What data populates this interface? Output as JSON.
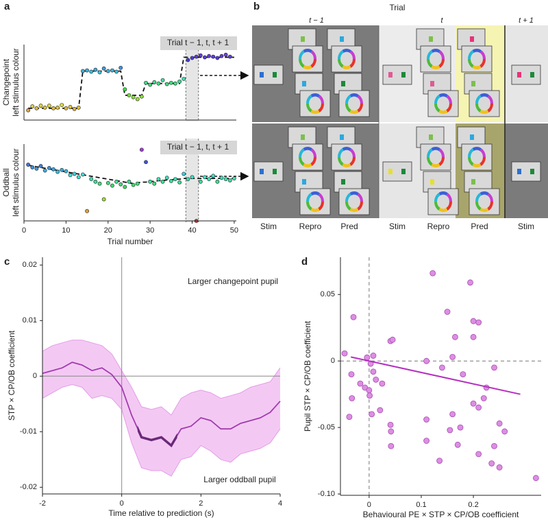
{
  "panel_labels": [
    "a",
    "b",
    "c",
    "d"
  ],
  "chart_data": [
    {
      "type": "scatter",
      "ylabel": [
        "Changepoint",
        "left stimulus colour"
      ],
      "annotation": "Trial t − 1, t, t + 1",
      "x": [
        1,
        2,
        3,
        4,
        5,
        6,
        7,
        8,
        9,
        10,
        11,
        12,
        13,
        14,
        15,
        16,
        17,
        18,
        19,
        20,
        21,
        22,
        23,
        24,
        25,
        26,
        27,
        28,
        29,
        30,
        31,
        32,
        33,
        34,
        35,
        36,
        37,
        38,
        39,
        40,
        41,
        42,
        43,
        44,
        45,
        46,
        47,
        48,
        49,
        50
      ],
      "values": [
        0.136,
        0.191,
        0.164,
        0.2,
        0.173,
        0.2,
        0.164,
        0.173,
        0.209,
        0.164,
        0.182,
        0.155,
        0.173,
        0.682,
        0.691,
        0.673,
        0.7,
        0.664,
        0.718,
        0.682,
        0.691,
        0.673,
        0.727,
        0.427,
        0.345,
        0.318,
        0.291,
        0.327,
        0.518,
        0.491,
        0.527,
        0.509,
        0.555,
        0.5,
        0.518,
        0.509,
        0.536,
        0.573,
        0.836,
        0.864,
        0.882,
        0.9,
        0.873,
        0.891,
        0.882,
        0.864,
        0.891,
        0.909,
        0.882,
        1.018
      ],
      "trend": [
        0.164,
        0.164,
        0.164,
        0.164,
        0.164,
        0.164,
        0.164,
        0.164,
        0.164,
        0.164,
        0.164,
        0.164,
        0.164,
        0.682,
        0.682,
        0.682,
        0.682,
        0.682,
        0.682,
        0.682,
        0.682,
        0.682,
        0.682,
        0.345,
        0.345,
        0.345,
        0.345,
        0.345,
        0.509,
        0.509,
        0.509,
        0.509,
        0.509,
        0.509,
        0.509,
        0.509,
        0.509,
        0.873,
        0.873,
        0.873,
        0.873,
        0.873,
        0.873,
        0.873,
        0.873,
        0.873,
        0.873,
        0.873,
        0.873,
        0.873
      ],
      "highlight_x": [
        38.5,
        41.5
      ],
      "xlim": [
        0,
        50.5
      ],
      "ylim": [
        0,
        1.05
      ]
    },
    {
      "type": "scatter",
      "ylabel": [
        "Oddball",
        "left stimulus colour"
      ],
      "xlabel": "Trial number",
      "annotation": "Trial t − 1, t, t + 1",
      "x": [
        1,
        2,
        3,
        4,
        5,
        6,
        7,
        8,
        9,
        10,
        11,
        12,
        13,
        14,
        15,
        16,
        17,
        18,
        19,
        20,
        21,
        22,
        23,
        24,
        25,
        26,
        27,
        28,
        29,
        30,
        31,
        32,
        33,
        34,
        35,
        36,
        37,
        38,
        39,
        40,
        41,
        42,
        43,
        44,
        45,
        46,
        47,
        48,
        49,
        50
      ],
      "values": [
        0.768,
        0.732,
        0.714,
        0.75,
        0.688,
        0.723,
        0.705,
        0.67,
        0.696,
        0.679,
        0.625,
        0.643,
        0.598,
        0.634,
        0.134,
        0.571,
        0.536,
        0.509,
        0.295,
        0.518,
        0.482,
        0.536,
        0.5,
        0.464,
        0.536,
        0.491,
        0.509,
        0.973,
        0.804,
        0.536,
        0.509,
        0.571,
        0.536,
        0.589,
        0.545,
        0.571,
        0.527,
        0.643,
        0.571,
        0.598,
        0,
        0.536,
        0.598,
        0.571,
        0.616,
        0.536,
        0.589,
        0.571,
        0.554,
        0.58
      ],
      "trend": [
        0.76,
        0.75,
        0.74,
        0.73,
        0.72,
        0.71,
        0.7,
        0.69,
        0.68,
        0.67,
        0.66,
        0.65,
        0.64,
        0.63,
        0.62,
        0.61,
        0.6,
        0.59,
        0.58,
        0.57,
        0.56,
        0.55,
        0.54,
        0.53,
        0.52,
        0.51,
        0.52,
        0.53,
        0.53,
        0.54,
        0.54,
        0.55,
        0.55,
        0.56,
        0.56,
        0.57,
        0.57,
        0.58,
        0.58,
        0.58,
        0.58,
        0.58,
        0.58,
        0.58,
        0.58,
        0.58,
        0.58,
        0.58,
        0.58,
        0.58
      ],
      "highlight_x": [
        38.5,
        41.5
      ],
      "xlim": [
        0,
        50.5
      ],
      "ylim": [
        0,
        1.05
      ],
      "xticks": [
        0,
        10,
        20,
        30,
        40,
        50
      ]
    },
    {
      "type": "line",
      "ylabel": "STP × CP/OB coefficient",
      "xlabel": "Time relative to prediction (s)",
      "annotations": [
        "Larger changepoint pupil",
        "Larger oddball pupil"
      ],
      "x": [
        -2,
        -1.75,
        -1.5,
        -1.25,
        -1,
        -0.75,
        -0.5,
        -0.25,
        0,
        0.25,
        0.5,
        0.75,
        1,
        1.25,
        1.5,
        1.75,
        2,
        2.25,
        2.5,
        2.75,
        3,
        3.25,
        3.5,
        3.75,
        4
      ],
      "values": [
        0.0005,
        0.001,
        0.0015,
        0.0025,
        0.002,
        0.001,
        0.0015,
        0.0003,
        -0.002,
        -0.007,
        -0.011,
        -0.0115,
        -0.011,
        -0.0125,
        -0.0095,
        -0.009,
        -0.0075,
        -0.008,
        -0.0095,
        -0.0095,
        -0.0085,
        -0.008,
        -0.0075,
        -0.0065,
        -0.0045
      ],
      "upper": [
        0.0045,
        0.0055,
        0.006,
        0.0065,
        0.0065,
        0.006,
        0.0055,
        0.004,
        0.001,
        -0.002,
        -0.0055,
        -0.006,
        -0.0055,
        -0.007,
        -0.004,
        -0.003,
        -0.0025,
        -0.003,
        -0.004,
        -0.0035,
        -0.003,
        -0.002,
        -0.0015,
        -0.001,
        0.0015
      ],
      "lower": [
        -0.004,
        -0.003,
        -0.002,
        -0.0015,
        -0.002,
        -0.004,
        -0.0035,
        -0.004,
        -0.006,
        -0.012,
        -0.0165,
        -0.017,
        -0.017,
        -0.018,
        -0.015,
        -0.0145,
        -0.0125,
        -0.0135,
        -0.015,
        -0.0155,
        -0.014,
        -0.0135,
        -0.013,
        -0.012,
        -0.0095
      ],
      "color": "#a23bb0",
      "band_color": "#f3c9f3",
      "highlight_color": "#6a2a78",
      "highlight_x": [
        0.4,
        1.4
      ],
      "hline": 0,
      "vline": 0,
      "xlim": [
        -2,
        4
      ],
      "ylim": [
        -0.0212,
        0.0214
      ],
      "xticks": [
        -2,
        0,
        2,
        4
      ],
      "yticks": [
        -0.02,
        -0.01,
        0,
        0.01,
        0.02
      ]
    },
    {
      "type": "scatter",
      "ylabel": "Pupil STP × CP/OB coefficient",
      "xlabel": "Behavioural PE × STP × CP/OB coefficient",
      "x": [
        -0.047,
        -0.03,
        -0.034,
        -0.033,
        -0.038,
        -0.008,
        -0.017,
        -0.004,
        0.003,
        0,
        0.001,
        0.008,
        0.008,
        0.005,
        0.013,
        0.021,
        0.025,
        0.041,
        0.045,
        0.042,
        0.042,
        0.041,
        0.122,
        0.194,
        0.15,
        0.2,
        0.21,
        0.165,
        0.2,
        0.16,
        0.18,
        0.11,
        0.14,
        0.24,
        0.225,
        0.22,
        0.2,
        0.21,
        0.16,
        0.11,
        0.25,
        0.26,
        0.175,
        0.155,
        0.11,
        0.17,
        0.24,
        0.135,
        0.21,
        0.235,
        0.25,
        0.32
      ],
      "values": [
        0.0057,
        0.033,
        -0.01,
        -0.028,
        -0.042,
        -0.02,
        -0.017,
        0.0026,
        -0.002,
        -0.022,
        -0.026,
        -0.008,
        0.004,
        -0.04,
        -0.014,
        -0.037,
        -0.017,
        0.015,
        0.016,
        -0.053,
        -0.064,
        -0.048,
        0.066,
        0.059,
        0.037,
        0.03,
        0.029,
        0.018,
        0.018,
        0.003,
        -0.01,
        0,
        -0.005,
        -0.005,
        -0.02,
        -0.028,
        -0.032,
        -0.035,
        -0.04,
        -0.044,
        -0.047,
        -0.053,
        -0.05,
        -0.052,
        -0.06,
        -0.063,
        -0.064,
        -0.075,
        -0.07,
        -0.077,
        -0.08,
        -0.088
      ],
      "fit": {
        "x": [
          -0.035,
          0.29
        ],
        "y": [
          0.003,
          -0.025
        ]
      },
      "color": "#dd8ee3",
      "fit_color": "#b52fc0",
      "hline": 0,
      "vline": 0,
      "xlim": [
        -0.055,
        0.33
      ],
      "ylim": [
        -0.101,
        0.078
      ],
      "xticks": [
        0,
        0.1,
        0.2
      ],
      "yticks": [
        {
          "value": -0.1,
          "label": "-0.10"
        },
        -0.05,
        0,
        0.05
      ]
    }
  ],
  "diagram": {
    "title": "Trial",
    "trials": [
      "t − 1",
      "t",
      "t + 1"
    ],
    "columns": [
      "Stim",
      "Repro",
      "Pred",
      "Stim",
      "Repro",
      "Pred",
      "Stim"
    ]
  }
}
